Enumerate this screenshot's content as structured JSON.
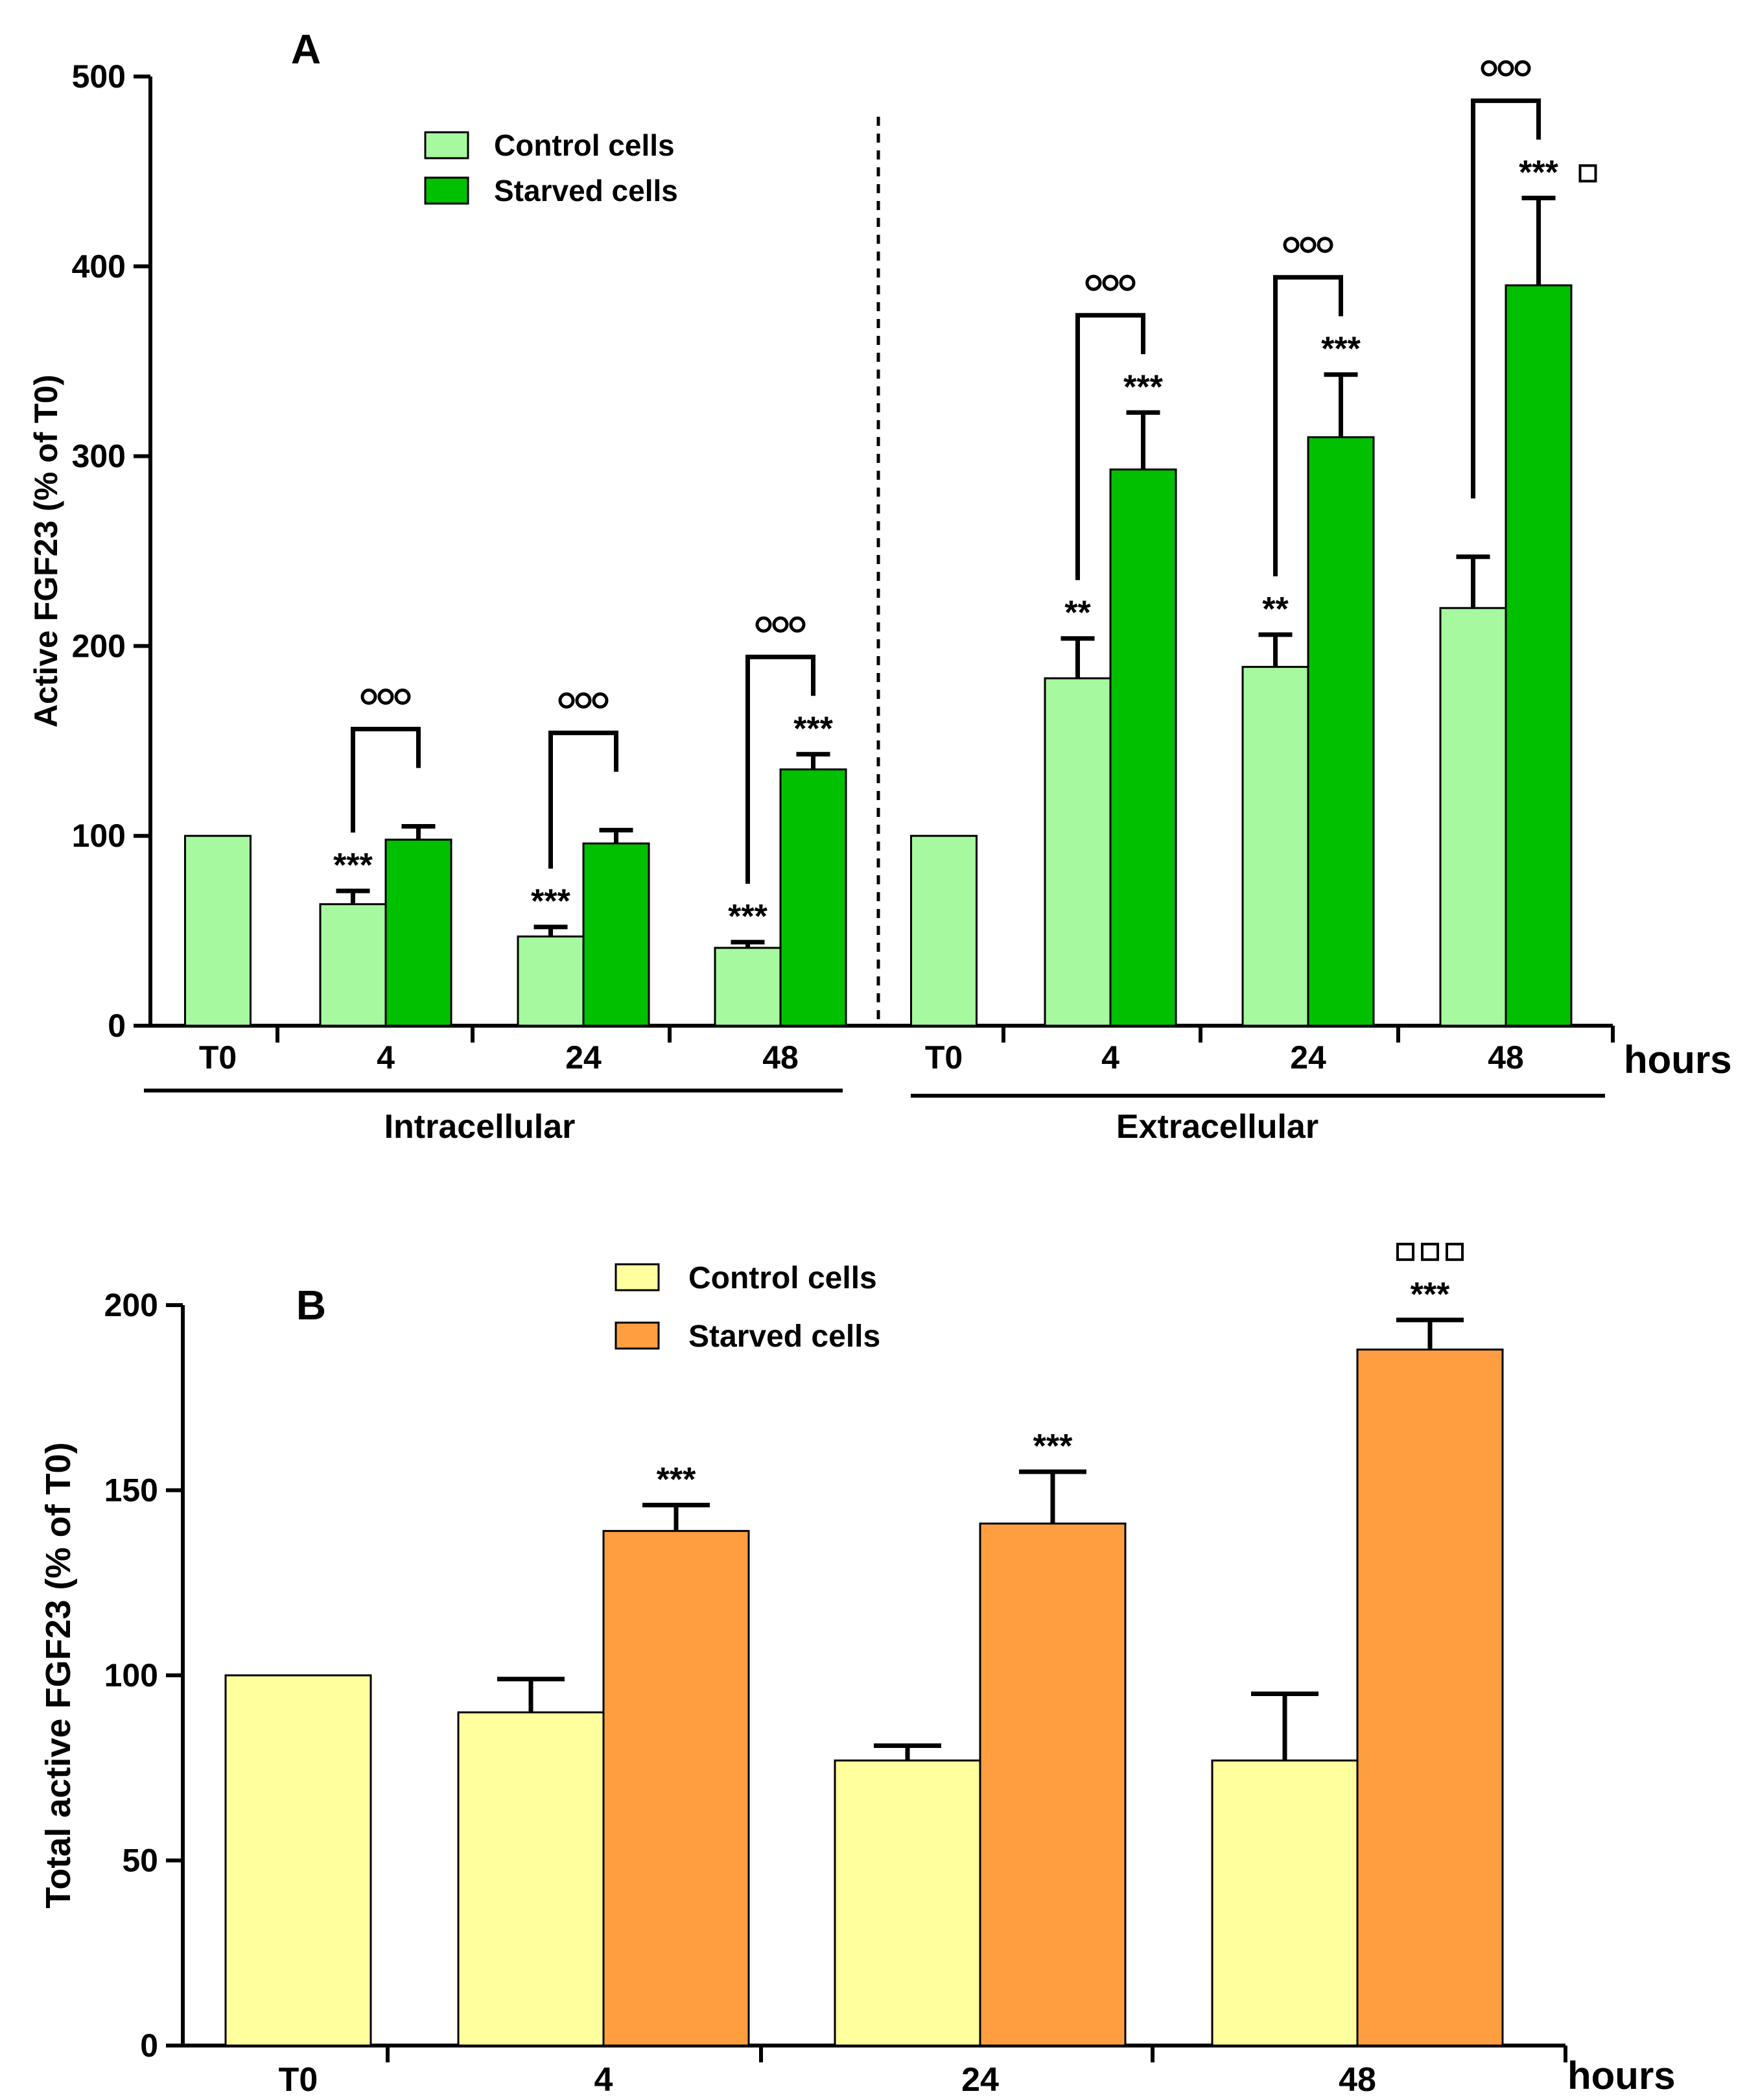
{
  "chart_data": [
    {
      "panel": "A",
      "type": "bar",
      "ylabel": "Active FGF23 (% of T0)",
      "ylim": [
        0,
        500
      ],
      "yticks": [
        0,
        100,
        200,
        300,
        400,
        500
      ],
      "x_unit": "hours",
      "categories": [
        "T0",
        "4",
        "24",
        "48",
        "T0",
        "4",
        "24",
        "48"
      ],
      "groups": [
        {
          "label": "Intracellular",
          "categories": [
            "T0",
            "4",
            "24",
            "48"
          ]
        },
        {
          "label": "Extracellular",
          "categories": [
            "T0",
            "4",
            "24",
            "48"
          ]
        }
      ],
      "legend": {
        "position": "top-left",
        "entries": [
          "Control cells",
          "Starved cells"
        ]
      },
      "colors": {
        "control": "#a6f99e",
        "starved": "#00c000"
      },
      "series": [
        {
          "name": "Control cells",
          "values": [
            100,
            64,
            47,
            41,
            100,
            183,
            189,
            220
          ],
          "errors": [
            0,
            7,
            5,
            3,
            0,
            21,
            17,
            27
          ]
        },
        {
          "name": "Starved cells",
          "values": [
            null,
            98,
            96,
            135,
            null,
            293,
            310,
            390
          ],
          "errors": [
            null,
            7,
            7,
            8,
            null,
            30,
            33,
            46
          ]
        }
      ],
      "annotations": {
        "control": [
          "",
          "***",
          "***",
          "***",
          "",
          "**",
          "**",
          ""
        ],
        "starved": [
          "",
          "",
          "",
          "***",
          "",
          "***",
          "***",
          "***"
        ],
        "starved_square": [
          false,
          false,
          false,
          false,
          false,
          false,
          false,
          true
        ],
        "comparison": [
          "",
          "ooo",
          "ooo",
          "ooo",
          "",
          "ooo",
          "ooo",
          "ooo"
        ]
      }
    },
    {
      "panel": "B",
      "type": "bar",
      "ylabel": "Total active FGF23 (% of T0)",
      "ylim": [
        0,
        200
      ],
      "yticks": [
        0,
        50,
        100,
        150,
        200
      ],
      "x_unit": "hours",
      "categories": [
        "T0",
        "4",
        "24",
        "48"
      ],
      "legend": {
        "position": "top-center",
        "entries": [
          "Control cells",
          "Starved cells"
        ]
      },
      "colors": {
        "control": "#ffff9e",
        "starved": "#ff9e40"
      },
      "series": [
        {
          "name": "Control cells",
          "values": [
            100,
            90,
            77,
            77
          ],
          "errors": [
            0,
            9,
            4,
            18
          ]
        },
        {
          "name": "Starved cells",
          "values": [
            null,
            139,
            141,
            188
          ],
          "errors": [
            null,
            7,
            14,
            8
          ]
        }
      ],
      "annotations": {
        "starved": [
          "",
          "***",
          "***",
          "***"
        ],
        "starved_squares": [
          0,
          0,
          0,
          3
        ]
      }
    }
  ]
}
